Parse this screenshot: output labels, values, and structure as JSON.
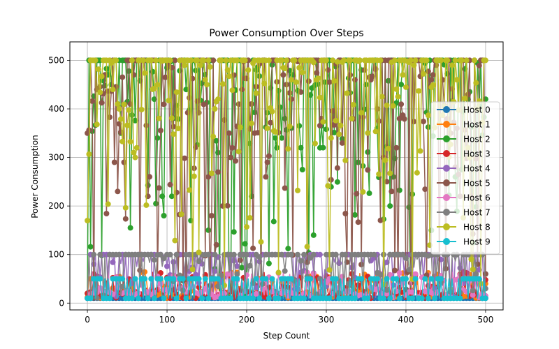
{
  "chart_data": {
    "type": "line",
    "title": "Power Consumption Over Steps",
    "xlabel": "Step Count",
    "ylabel": "Power Consumption",
    "xlim": [
      -22,
      522
    ],
    "ylim": [
      -14,
      538
    ],
    "xticks": [
      0,
      100,
      200,
      300,
      400,
      500
    ],
    "yticks": [
      0,
      100,
      200,
      300,
      400,
      500
    ],
    "grid": true,
    "legend_position": "right",
    "markers": true,
    "series": [
      {
        "name": "Host 0",
        "color": "#1f77b4",
        "style": "idle",
        "values": [
          10,
          10,
          10,
          10,
          10,
          10,
          10,
          10,
          10,
          10,
          10,
          10,
          10,
          10,
          10,
          10,
          10,
          10,
          10,
          10,
          10,
          10,
          10,
          10,
          10,
          10
        ]
      },
      {
        "name": "Host 1",
        "color": "#ff7f0e",
        "style": "low",
        "values": [
          12,
          40,
          15,
          30,
          60,
          20,
          10,
          45,
          25,
          15,
          50,
          30,
          10,
          35,
          60,
          20,
          15,
          40,
          10,
          25,
          55,
          30,
          20,
          80,
          15,
          40
        ]
      },
      {
        "name": "Host 2",
        "color": "#2ca02c",
        "style": "high",
        "values": [
          20,
          500,
          400,
          50,
          500,
          100,
          500,
          200,
          20,
          10,
          100,
          500,
          300,
          500,
          50,
          500,
          500,
          500,
          400,
          200,
          500,
          500,
          500,
          500,
          50,
          420
        ]
      },
      {
        "name": "Host 3",
        "color": "#d62728",
        "style": "low",
        "values": [
          20,
          30,
          50,
          10,
          35,
          40,
          20,
          30,
          10,
          45,
          25,
          30,
          10,
          20,
          40,
          30,
          15,
          35,
          20,
          30,
          40,
          10,
          25,
          30,
          20,
          48
        ]
      },
      {
        "name": "Host 4",
        "color": "#9467bd",
        "style": "mid",
        "values": [
          10,
          100,
          70,
          90,
          40,
          100,
          60,
          100,
          80,
          20,
          100,
          50,
          90,
          100,
          30,
          100,
          70,
          100,
          90,
          40,
          100,
          60,
          100,
          80,
          50,
          60
        ]
      },
      {
        "name": "Host 5",
        "color": "#8c564b",
        "style": "high",
        "values": [
          350,
          500,
          200,
          500,
          150,
          500,
          450,
          500,
          100,
          300,
          500,
          200,
          500,
          400,
          100,
          500,
          300,
          500,
          450,
          200,
          500,
          400,
          500,
          300,
          100,
          60
        ]
      },
      {
        "name": "Host 6",
        "color": "#e377c2",
        "style": "low",
        "values": [
          10,
          60,
          20,
          40,
          10,
          50,
          30,
          10,
          70,
          20,
          40,
          10,
          60,
          30,
          20,
          50,
          10,
          40,
          70,
          20,
          30,
          10,
          60,
          20,
          40,
          15
        ]
      },
      {
        "name": "Host 7",
        "color": "#7f7f7f",
        "style": "mid",
        "values": [
          10,
          100,
          90,
          100,
          60,
          100,
          80,
          100,
          100,
          70,
          100,
          90,
          100,
          60,
          100,
          80,
          100,
          100,
          90,
          100,
          60,
          100,
          80,
          100,
          70,
          30
        ]
      },
      {
        "name": "Host 8",
        "color": "#bcbd22",
        "style": "high",
        "values": [
          170,
          500,
          400,
          300,
          500,
          480,
          150,
          500,
          400,
          500,
          500,
          300,
          500,
          450,
          500,
          400,
          200,
          500,
          500,
          350,
          500,
          480,
          400,
          500,
          300,
          500
        ]
      },
      {
        "name": "Host 9",
        "color": "#17becf",
        "style": "band",
        "values": [
          10,
          50,
          10,
          50,
          10,
          50,
          10,
          50,
          10,
          50,
          10,
          50,
          10,
          50,
          10,
          50,
          10,
          50,
          10,
          50,
          10,
          50,
          10,
          50,
          10,
          10
        ]
      }
    ]
  }
}
